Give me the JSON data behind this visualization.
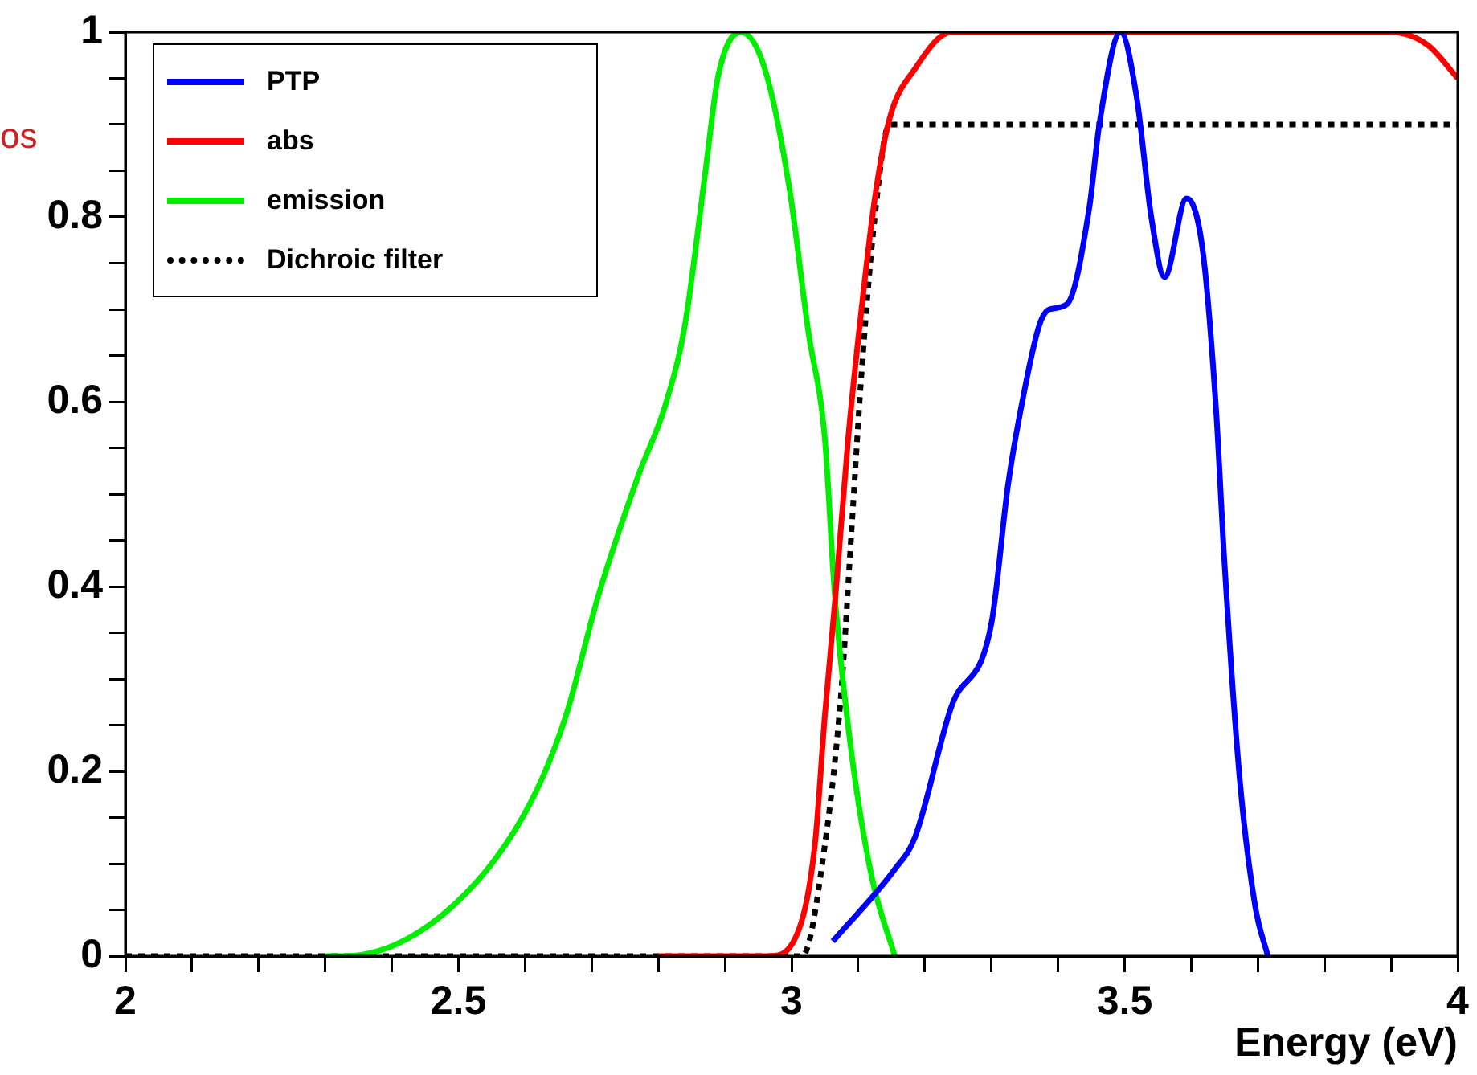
{
  "chart_data": {
    "type": "line",
    "xlabel": "Energy (eV)",
    "annotations": [
      "os"
    ],
    "xlim": [
      2,
      4
    ],
    "ylim": [
      0,
      1
    ],
    "xticks": [
      2,
      {
        "value": 2.1,
        "label": null
      },
      {
        "value": 2.2,
        "label": null
      },
      {
        "value": 2.3,
        "label": null
      },
      {
        "value": 2.4,
        "label": null
      },
      2.5,
      {
        "value": 2.6,
        "label": null
      },
      {
        "value": 2.7,
        "label": null
      },
      {
        "value": 2.8,
        "label": null
      },
      {
        "value": 2.9,
        "label": null
      },
      3,
      {
        "value": 3.1,
        "label": null
      },
      {
        "value": 3.2,
        "label": null
      },
      {
        "value": 3.3,
        "label": null
      },
      {
        "value": 3.4,
        "label": null
      },
      3.5,
      {
        "value": 3.6,
        "label": null
      },
      {
        "value": 3.7,
        "label": null
      },
      {
        "value": 3.8,
        "label": null
      },
      {
        "value": 3.9,
        "label": null
      },
      4
    ],
    "yticks": [
      0,
      {
        "value": 0.05,
        "label": null
      },
      {
        "value": 0.1,
        "label": null
      },
      {
        "value": 0.15,
        "label": null
      },
      0.2,
      {
        "value": 0.25,
        "label": null
      },
      {
        "value": 0.3,
        "label": null
      },
      {
        "value": 0.35,
        "label": null
      },
      0.4,
      {
        "value": 0.45,
        "label": null
      },
      {
        "value": 0.5,
        "label": null
      },
      {
        "value": 0.55,
        "label": null
      },
      0.6,
      {
        "value": 0.65,
        "label": null
      },
      {
        "value": 0.7,
        "label": null
      },
      {
        "value": 0.75,
        "label": null
      },
      0.8,
      {
        "value": 0.85,
        "label": null
      },
      {
        "value": 0.9,
        "label": null
      },
      {
        "value": 0.95,
        "label": null
      },
      1
    ],
    "grid": false,
    "legend": "top left",
    "marker": "none",
    "series": [
      {
        "name": "PTP",
        "color": "#0000ff",
        "line_style": "solid",
        "x": [
          3.062,
          3.155,
          3.185,
          3.24,
          3.3,
          3.325,
          3.345,
          3.372,
          3.387,
          3.414,
          3.447,
          3.462,
          3.494,
          3.518,
          3.54,
          3.56,
          3.593,
          3.617,
          3.637,
          3.65,
          3.673,
          3.696,
          3.715
        ],
        "values": [
          0.016,
          0.094,
          0.128,
          0.27,
          0.36,
          0.51,
          0.595,
          0.683,
          0.7,
          0.706,
          0.81,
          0.9,
          1,
          0.93,
          0.8,
          0.735,
          0.82,
          0.765,
          0.595,
          0.425,
          0.19,
          0.054,
          0
        ]
      },
      {
        "name": "abs",
        "color": "#ff0000",
        "line_style": "solid",
        "x": [
          2.8,
          2.967,
          3.006,
          3.035,
          3.05,
          3.066,
          3.085,
          3.105,
          3.125,
          3.147,
          3.185,
          3.24,
          3.9,
          3.955,
          4
        ],
        "values": [
          0,
          0,
          0.02,
          0.12,
          0.26,
          0.39,
          0.56,
          0.7,
          0.82,
          0.906,
          0.96,
          1,
          1,
          0.986,
          0.95
        ]
      },
      {
        "name": "emission",
        "color": "#00ee00",
        "line_style": "solid",
        "x": [
          2.3,
          2.33,
          2.48,
          2.6,
          2.66,
          2.71,
          2.77,
          2.81,
          2.84,
          2.87,
          2.89,
          2.924,
          2.96,
          2.997,
          3.025,
          3.05,
          3.065,
          3.09,
          3.12,
          3.155
        ],
        "values": [
          0,
          0,
          0.047,
          0.155,
          0.257,
          0.39,
          0.52,
          0.595,
          0.683,
          0.845,
          0.953,
          1,
          0.96,
          0.83,
          0.677,
          0.56,
          0.39,
          0.22,
          0.087,
          0
        ]
      },
      {
        "name": "Dichroic filter",
        "color": "#000000",
        "line_style": "dotted",
        "x": [
          2,
          3.016,
          3.05,
          3.075,
          3.09,
          3.105,
          3.125,
          3.147,
          4
        ],
        "values": [
          0,
          0,
          0.12,
          0.29,
          0.46,
          0.63,
          0.8,
          0.9,
          0.9
        ]
      }
    ]
  }
}
